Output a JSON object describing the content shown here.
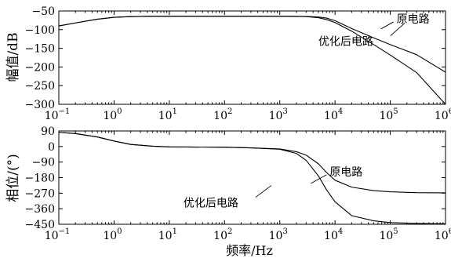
{
  "chart_data": [
    {
      "type": "line",
      "panel": "magnitude",
      "ylabel": "幅值/dB",
      "xscale": "log",
      "xlim": [
        0.1,
        1000000
      ],
      "ylim": [
        -300,
        -50
      ],
      "yticks": [
        -50,
        -100,
        -150,
        -200,
        -250,
        -300
      ],
      "xtick_bases": [
        "10",
        "10",
        "10",
        "10",
        "10",
        "10",
        "10",
        "10"
      ],
      "xtick_exps": [
        "−1",
        "0",
        "1",
        "2",
        "3",
        "4",
        "5",
        "6"
      ],
      "series": [
        {
          "name": "原电路",
          "x": [
            0.1,
            0.2,
            0.5,
            1,
            2,
            5,
            10,
            100,
            1000,
            3000,
            5000,
            7000,
            10000,
            20000,
            50000,
            100000,
            300000,
            1000000
          ],
          "y": [
            -90,
            -82,
            -72,
            -67,
            -65,
            -64,
            -64,
            -64,
            -64,
            -64.5,
            -66,
            -69,
            -76,
            -97,
            -122,
            -140,
            -167,
            -214
          ]
        },
        {
          "name": "优化后电路",
          "x": [
            0.1,
            0.2,
            0.5,
            1,
            2,
            5,
            10,
            100,
            1000,
            3000,
            5000,
            7000,
            10000,
            20000,
            50000,
            100000,
            300000,
            1000000
          ],
          "y": [
            -90,
            -82,
            -72,
            -67,
            -65,
            -64,
            -64,
            -64,
            -64,
            -65,
            -68,
            -73,
            -81,
            -104,
            -140,
            -168,
            -215,
            -300
          ]
        }
      ],
      "annotations": [
        {
          "text": "原电路",
          "x": 130000,
          "y": -73
        },
        {
          "text": "优化后电路",
          "x": 5000,
          "y": -133
        }
      ]
    },
    {
      "type": "line",
      "panel": "phase",
      "ylabel": "相位/(°)",
      "xlabel": "频率/Hz",
      "xscale": "log",
      "xlim": [
        0.1,
        1000000
      ],
      "ylim": [
        -450,
        90
      ],
      "yticks": [
        90,
        0,
        -90,
        -180,
        -270,
        -360,
        -450
      ],
      "xtick_bases": [
        "10",
        "10",
        "10",
        "10",
        "10",
        "10",
        "10",
        "10"
      ],
      "xtick_exps": [
        "−1",
        "0",
        "1",
        "2",
        "3",
        "4",
        "5",
        "6"
      ],
      "series": [
        {
          "name": "原电路",
          "x": [
            0.1,
            0.2,
            0.5,
            1,
            2,
            5,
            10,
            100,
            300,
            1000,
            2000,
            3000,
            5000,
            7000,
            10000,
            20000,
            50000,
            100000,
            300000,
            1000000
          ],
          "y": [
            82,
            75,
            55,
            32,
            12,
            2,
            -2,
            -4,
            -8,
            -14,
            -30,
            -50,
            -100,
            -150,
            -195,
            -235,
            -255,
            -262,
            -267,
            -268
          ]
        },
        {
          "name": "优化后电路",
          "x": [
            0.1,
            0.2,
            0.5,
            1,
            2,
            5,
            10,
            100,
            300,
            1000,
            2000,
            3000,
            5000,
            7000,
            10000,
            20000,
            50000,
            100000,
            300000,
            1000000
          ],
          "y": [
            82,
            75,
            55,
            32,
            12,
            2,
            -2,
            -4,
            -8,
            -16,
            -40,
            -80,
            -170,
            -250,
            -320,
            -400,
            -430,
            -440,
            -445,
            -447
          ]
        }
      ],
      "annotations": [
        {
          "text": "原电路",
          "x": 8000,
          "y": -150
        },
        {
          "text": "优化后电路",
          "x": 18,
          "y": -330
        }
      ]
    }
  ]
}
